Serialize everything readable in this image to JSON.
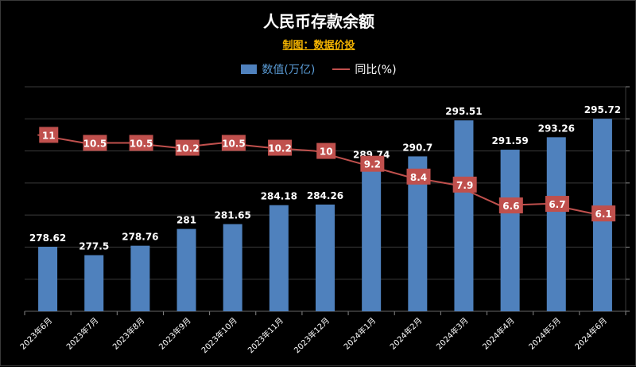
{
  "title": "人民币存款余额",
  "subtitle": "制图：数据价投",
  "legend": {
    "bar_label": "数值(万亿)",
    "line_label": "同比(%)"
  },
  "colors": {
    "bar": "#4f81bd",
    "line": "#c0504d",
    "label_box": "#c0504d",
    "background": "#000000",
    "grid": "#3a3a3a",
    "subtitle": "#f5b400"
  },
  "chart_data": {
    "type": "bar",
    "title": "人民币存款余额",
    "categories": [
      "2023年6月",
      "2023年7月",
      "2023年8月",
      "2023年9月",
      "2023年10月",
      "2023年11月",
      "2023年12月",
      "2024年1月",
      "2024年2月",
      "2024年3月",
      "2024年4月",
      "2024年5月",
      "2024年6月"
    ],
    "series": [
      {
        "name": "数值(万亿)",
        "type": "bar",
        "axis": "left",
        "values": [
          278.62,
          277.5,
          278.76,
          281,
          281.65,
          284.18,
          284.26,
          289.74,
          290.7,
          295.51,
          291.59,
          293.26,
          295.72
        ]
      },
      {
        "name": "同比(%)",
        "type": "line",
        "axis": "right",
        "values": [
          11,
          10.5,
          10.5,
          10.2,
          10.5,
          10.2,
          10,
          9.2,
          8.4,
          7.9,
          6.6,
          6.7,
          6.1
        ]
      }
    ],
    "ylim_left": [
      270,
      300
    ],
    "ylim_right": [
      0,
      14
    ],
    "grid": true,
    "legend_position": "top-center"
  }
}
